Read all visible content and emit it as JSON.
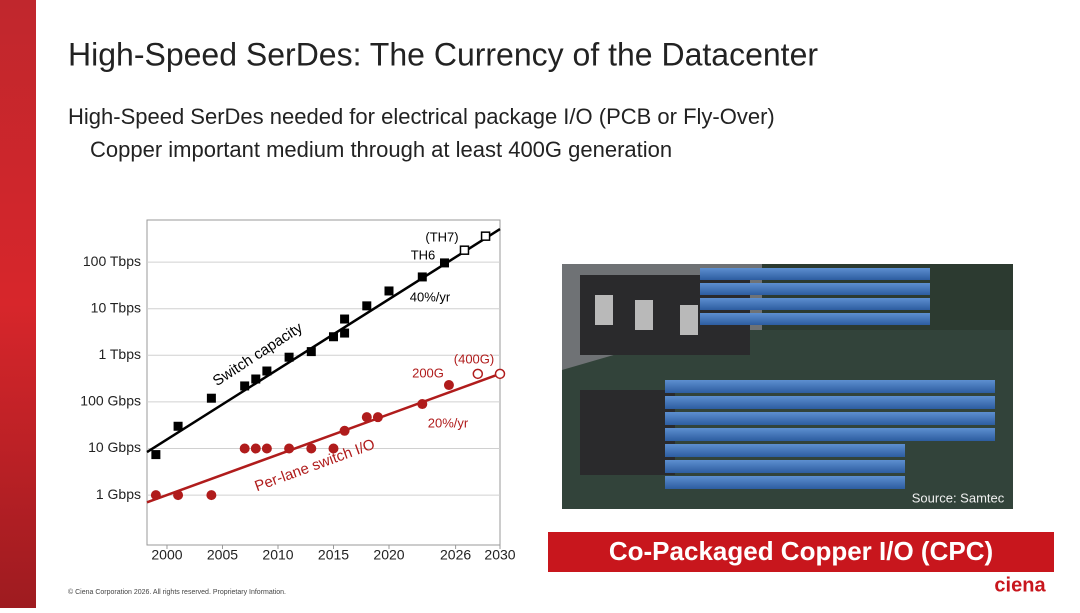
{
  "title": "High-Speed SerDes: The Currency of the Datacenter",
  "bullets": [
    "High-Speed SerDes needed for electrical package I/O (PCB or Fly-Over)",
    "Copper important medium through at least 400G generation"
  ],
  "image_caption": "Source: Samtec",
  "banner": "Co-Packaged Copper I/O (CPC)",
  "footer": "© Ciena Corporation 2026. All rights reserved. Proprietary Information.",
  "logo": "ciena",
  "chart_data": {
    "type": "scatter",
    "log_y": true,
    "grid": true,
    "xlim": [
      1998.2,
      2030
    ],
    "xticks": [
      2000,
      2005,
      2010,
      2015,
      2020,
      2026,
      2030
    ],
    "ylim": [
      0.085,
      800000
    ],
    "yticks": [
      {
        "value": 1,
        "label": "1 Gbps"
      },
      {
        "value": 10,
        "label": "10 Gbps"
      },
      {
        "value": 100,
        "label": "100 Gbps"
      },
      {
        "value": 1000,
        "label": "1 Tbps"
      },
      {
        "value": 10000,
        "label": "10 Tbps"
      },
      {
        "value": 100000,
        "label": "100 Tbps"
      }
    ],
    "series": [
      {
        "name": "Switch capacity",
        "color": "#000000",
        "marker": "square",
        "x": [
          1999,
          2001,
          2004,
          2007,
          2008,
          2009,
          2011,
          2013,
          2015,
          2016,
          2016,
          2018,
          2020,
          2023,
          2025
        ],
        "values": [
          7.4,
          30,
          120,
          220,
          310,
          460,
          910,
          1200,
          2500,
          3000,
          6000,
          11500,
          24000,
          48000,
          96000
        ]
      },
      {
        "color": "#000000",
        "marker": "square-open",
        "x": [
          2026.8,
          2028.7
        ],
        "values": [
          180000,
          360000
        ]
      },
      {
        "color": "#000000",
        "marker": "line",
        "x": [
          1998.2,
          2030
        ],
        "values": [
          8.4,
          510000
        ]
      },
      {
        "name": "Per-lane switch I/O",
        "color": "#b01c1c",
        "marker": "circle",
        "x": [
          1999,
          2001,
          2004,
          2007,
          2008,
          2009,
          2011,
          2013,
          2015,
          2016,
          2018,
          2019,
          2023,
          2025.4
        ],
        "values": [
          1,
          1,
          1,
          10,
          10,
          10,
          10,
          10,
          10,
          24,
          47,
          47,
          90,
          230
        ]
      },
      {
        "color": "#b01c1c",
        "marker": "circle-open",
        "x": [
          2028,
          2030
        ],
        "values": [
          400,
          400
        ]
      },
      {
        "color": "#b01c1c",
        "marker": "line",
        "x": [
          1998.2,
          2030
        ],
        "values": [
          0.7,
          400
        ]
      }
    ],
    "annotations": [
      "40%/yr",
      "20%/yr",
      "TH6",
      "(TH7)",
      "200G",
      "(400G)"
    ]
  }
}
